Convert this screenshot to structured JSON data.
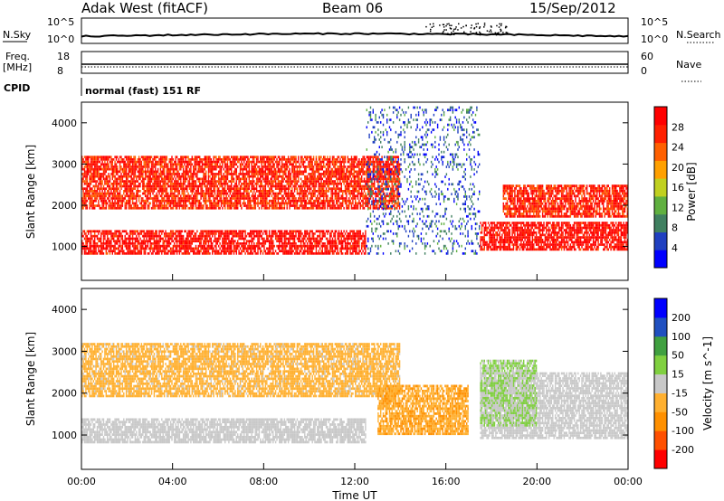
{
  "header": {
    "station": "Adak West (fitACF)",
    "beam": "Beam 06",
    "date": "15/Sep/2012"
  },
  "status_panel": {
    "nsky_label": "N.Sky",
    "nsky_ticks": [
      "10^5",
      "10^0"
    ],
    "nsearch_label": "N.Search",
    "nsearch_ticks": [
      "10^5",
      "10^0"
    ],
    "freq_label": "Freq.",
    "freq_unit": "[MHz]",
    "freq_ticks": [
      "18",
      "8"
    ],
    "nave_label": "Nave",
    "nave_ticks": [
      "60",
      "0"
    ],
    "cpid_label": "CPID",
    "cpid_value": "normal (fast) 151 RF"
  },
  "chart_data": [
    {
      "type": "heatmap",
      "name": "power",
      "xlabel": "Time UT",
      "ylabel": "Slant Range [km]",
      "x_ticks": [
        "00:00",
        "04:00",
        "08:00",
        "12:00",
        "16:00",
        "20:00",
        "00:00"
      ],
      "xlim_hours": [
        0,
        24
      ],
      "y_ticks": [
        1000,
        2000,
        3000,
        4000
      ],
      "ylim": [
        180,
        4500
      ],
      "colorbar": {
        "label": "Power [dB]",
        "ticks": [
          4,
          8,
          12,
          16,
          20,
          24,
          28
        ],
        "range": [
          0,
          30
        ],
        "colors": [
          "#0000ff",
          "#2040c0",
          "#408060",
          "#60b040",
          "#c0d020",
          "#ffa000",
          "#ff6000",
          "#ff2000",
          "#ff0000"
        ]
      },
      "features": [
        {
          "label": "near-range scatter",
          "t_start": 0,
          "t_end": 12.5,
          "range_start": 800,
          "range_end": 1400,
          "value": 28
        },
        {
          "label": "rising F-region band",
          "t_start": 0,
          "t_end": 14,
          "range_start": 1900,
          "range_end": 3200,
          "value": 26
        },
        {
          "label": "post-midnight band",
          "t_start": 17.5,
          "t_end": 24,
          "range_start": 900,
          "range_end": 1600,
          "value": 28
        },
        {
          "label": "post-midnight upper band",
          "t_start": 18.5,
          "t_end": 24,
          "range_start": 1700,
          "range_end": 2500,
          "value": 26
        },
        {
          "label": "midday sparse echoes",
          "t_start": 12.5,
          "t_end": 17.5,
          "range_start": 800,
          "range_end": 4400,
          "value": 6
        }
      ]
    },
    {
      "type": "heatmap",
      "name": "velocity",
      "xlabel": "Time UT",
      "ylabel": "Slant Range [km]",
      "x_ticks": [
        "00:00",
        "04:00",
        "08:00",
        "12:00",
        "16:00",
        "20:00",
        "00:00"
      ],
      "xlim_hours": [
        0,
        24
      ],
      "y_ticks": [
        1000,
        2000,
        3000,
        4000
      ],
      "ylim": [
        180,
        4500
      ],
      "colorbar": {
        "label": "Velocity [m s^-1]",
        "ticks": [
          "200",
          "100",
          "50",
          "15",
          "-15",
          "-50",
          "-100",
          "-200"
        ],
        "range": [
          -250,
          250
        ],
        "colors": [
          "#ff0000",
          "#ff5000",
          "#ff9000",
          "#ffb030",
          "#c8c8c8",
          "#80d040",
          "#40a040",
          "#2050c0",
          "#0000ff"
        ]
      },
      "features": [
        {
          "label": "ground scatter near",
          "t_start": 0,
          "t_end": 12.5,
          "range_start": 800,
          "range_end": 1400,
          "value": 0
        },
        {
          "label": "rising band",
          "t_start": 0,
          "t_end": 14,
          "range_start": 1900,
          "range_end": 3200,
          "value": -40
        },
        {
          "label": "midday negative echoes",
          "t_start": 13,
          "t_end": 17,
          "range_start": 1000,
          "range_end": 2200,
          "value": -80
        },
        {
          "label": "post-midnight ground scatter",
          "t_start": 17.5,
          "t_end": 24,
          "range_start": 900,
          "range_end": 2500,
          "value": 0
        },
        {
          "label": "post-midnight positive echoes",
          "t_start": 17.5,
          "t_end": 20,
          "range_start": 1200,
          "range_end": 2800,
          "value": 30
        }
      ]
    }
  ],
  "colors": {
    "axis": "#000000",
    "background": "#ffffff"
  }
}
